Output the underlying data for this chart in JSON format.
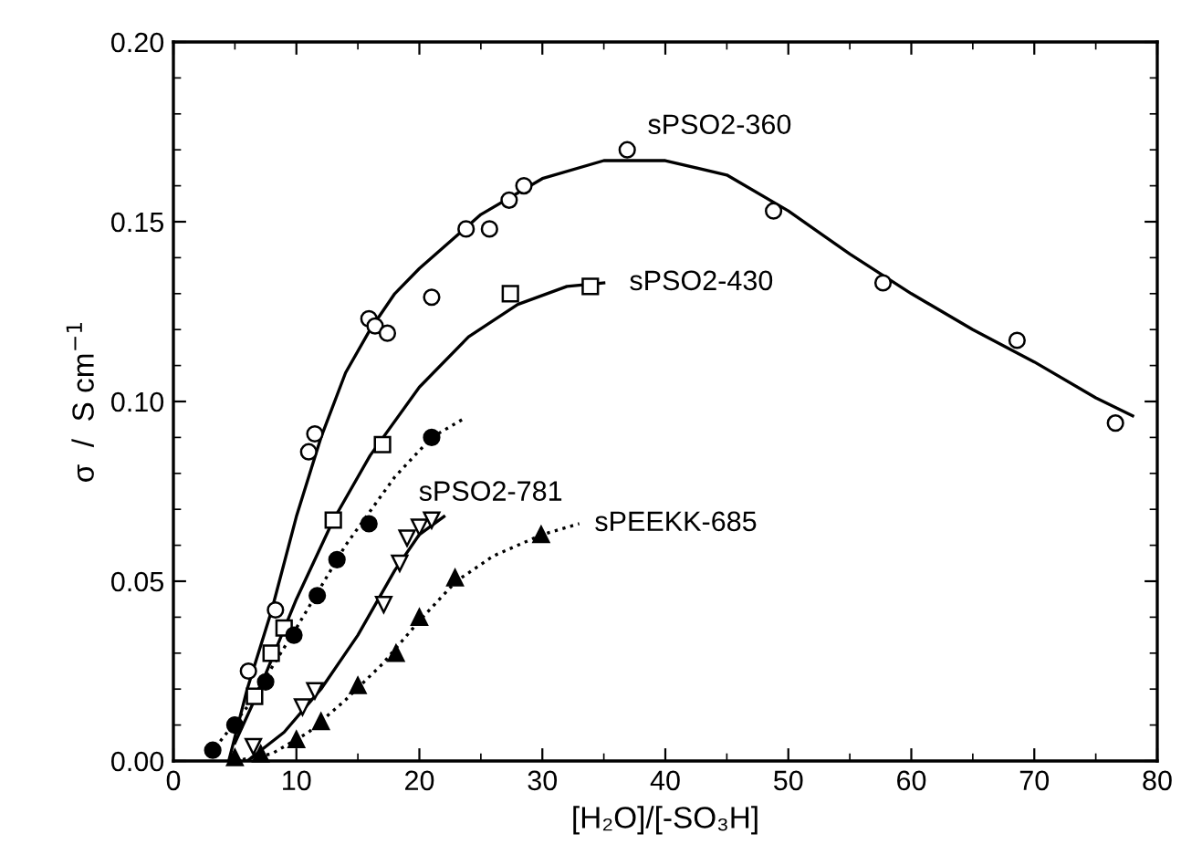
{
  "chart_data": {
    "type": "scatter",
    "xlabel": "[H₂O]/[-SO₃H]",
    "ylabel": "σ  /  S cm$^{−1}$",
    "xlim": [
      0,
      80
    ],
    "xticks": [
      0,
      10,
      20,
      30,
      40,
      50,
      60,
      70,
      80
    ],
    "ylim": [
      0,
      0.2
    ],
    "yticks": [
      {
        "value": 0,
        "label": "0.00"
      },
      {
        "value": 0.05,
        "label": "0.05"
      },
      {
        "value": 0.1,
        "label": "0.10"
      },
      {
        "value": 0.15,
        "label": "0.15"
      },
      {
        "value": 0.2,
        "label": "0.20"
      }
    ],
    "grid": false,
    "series": [
      {
        "marker": "circle",
        "color": "#ffffff",
        "x": [
          6.1,
          8.3,
          11.0,
          11.5,
          15.9,
          16.4,
          17.4,
          21.0,
          23.8,
          25.7,
          27.3,
          28.5,
          36.9,
          48.8,
          57.7,
          68.6,
          76.6
        ],
        "values": [
          0.025,
          0.042,
          0.086,
          0.091,
          0.123,
          0.121,
          0.119,
          0.129,
          0.148,
          0.148,
          0.156,
          0.16,
          0.17,
          0.153,
          0.133,
          0.117,
          0.094
        ]
      },
      {
        "type": "line",
        "line_style": "solid",
        "color": "#000000",
        "x": [
          4.5,
          6,
          8,
          10,
          12,
          14,
          16,
          18,
          20,
          25,
          30,
          35,
          40,
          45,
          50,
          55,
          60,
          65,
          70,
          75,
          78
        ],
        "values": [
          0.0,
          0.02,
          0.042,
          0.068,
          0.09,
          0.108,
          0.12,
          0.13,
          0.137,
          0.152,
          0.162,
          0.167,
          0.167,
          0.163,
          0.153,
          0.141,
          0.13,
          0.12,
          0.111,
          0.101,
          0.096
        ]
      },
      {
        "marker": "square",
        "color": "#ffffff",
        "x": [
          6.6,
          7.95,
          9.0,
          13.0,
          17.0,
          27.4,
          33.9
        ],
        "values": [
          0.018,
          0.03,
          0.037,
          0.067,
          0.088,
          0.13,
          0.132
        ]
      },
      {
        "type": "line",
        "line_style": "solid",
        "color": "#000000",
        "x": [
          5,
          7,
          10,
          13,
          16,
          20,
          24,
          28,
          32,
          35
        ],
        "values": [
          0.005,
          0.02,
          0.045,
          0.067,
          0.085,
          0.104,
          0.118,
          0.127,
          0.132,
          0.133
        ]
      },
      {
        "marker": "circle",
        "color": "#000000",
        "x": [
          3.2,
          5.0,
          7.5,
          9.8,
          11.7,
          13.3,
          15.9,
          21.0
        ],
        "values": [
          0.003,
          0.01,
          0.022,
          0.035,
          0.046,
          0.056,
          0.066,
          0.09
        ]
      },
      {
        "type": "line",
        "line_style": "dotted",
        "color": "#000000",
        "x": [
          3,
          6,
          10,
          14,
          18,
          21,
          23.5
        ],
        "values": [
          0.002,
          0.015,
          0.037,
          0.06,
          0.079,
          0.09,
          0.095
        ]
      },
      {
        "marker": "triangle-down",
        "color": "#ffffff",
        "x": [
          6.5,
          10.5,
          11.5,
          17.1,
          18.4,
          19.0,
          20.0,
          21.0
        ],
        "values": [
          0.004,
          0.015,
          0.0195,
          0.0435,
          0.055,
          0.062,
          0.065,
          0.067
        ]
      },
      {
        "type": "line",
        "line_style": "solid",
        "color": "#000000",
        "x": [
          6,
          9,
          12,
          15,
          18,
          20,
          22
        ],
        "values": [
          0.0,
          0.008,
          0.02,
          0.035,
          0.053,
          0.063,
          0.068
        ]
      },
      {
        "marker": "triangle",
        "color": "#000000",
        "x": [
          5.0,
          7.1,
          10.0,
          12.0,
          15.0,
          18.1,
          20.0,
          22.9,
          29.9
        ],
        "values": [
          0.001,
          0.002,
          0.006,
          0.011,
          0.021,
          0.03,
          0.04,
          0.051,
          0.063
        ]
      },
      {
        "type": "line",
        "line_style": "dotted",
        "color": "#000000",
        "x": [
          5,
          8,
          11,
          14,
          17,
          20,
          23,
          26,
          30,
          33
        ],
        "values": [
          0.0,
          0.002,
          0.008,
          0.017,
          0.027,
          0.039,
          0.05,
          0.057,
          0.063,
          0.066
        ]
      }
    ],
    "annotations": [
      {
        "text": "sPSO2-360",
        "x": 36.9,
        "y": 0.17
      },
      {
        "text": "sPSO2-430",
        "x": 35,
        "y": 0.133
      },
      {
        "text": "sPSO2-781",
        "x": 22,
        "y": 0.068
      },
      {
        "text": "sPEEKK-685",
        "x": 33,
        "y": 0.066
      }
    ]
  }
}
